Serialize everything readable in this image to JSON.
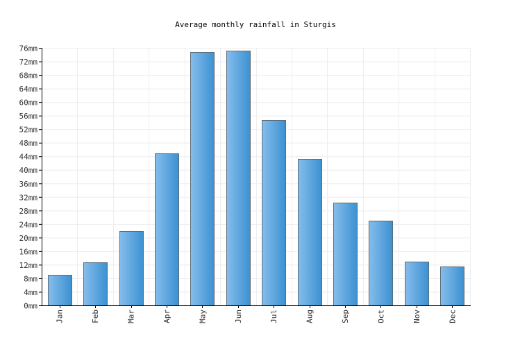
{
  "chart_data": {
    "type": "bar",
    "title": "Average monthly rainfall in Sturgis",
    "xlabel": "",
    "ylabel": "",
    "unit": "mm",
    "categories": [
      "Jan",
      "Feb",
      "Mar",
      "Apr",
      "May",
      "Jun",
      "Jul",
      "Aug",
      "Sep",
      "Oct",
      "Nov",
      "Dec"
    ],
    "values": [
      9.1,
      12.6,
      22,
      44.9,
      74.7,
      75.2,
      54.7,
      43.3,
      30.4,
      24.9,
      13,
      11.4
    ],
    "ylim": [
      0,
      76
    ],
    "yticks": [
      0,
      4,
      8,
      12,
      16,
      20,
      24,
      28,
      32,
      36,
      40,
      44,
      48,
      52,
      56,
      60,
      64,
      68,
      72,
      76
    ],
    "grid": true,
    "legend": "none",
    "colors": {
      "bar_light": "#86bdec",
      "bar_dark": "#3b91d1",
      "bar_stroke": "#5a6b78"
    }
  }
}
